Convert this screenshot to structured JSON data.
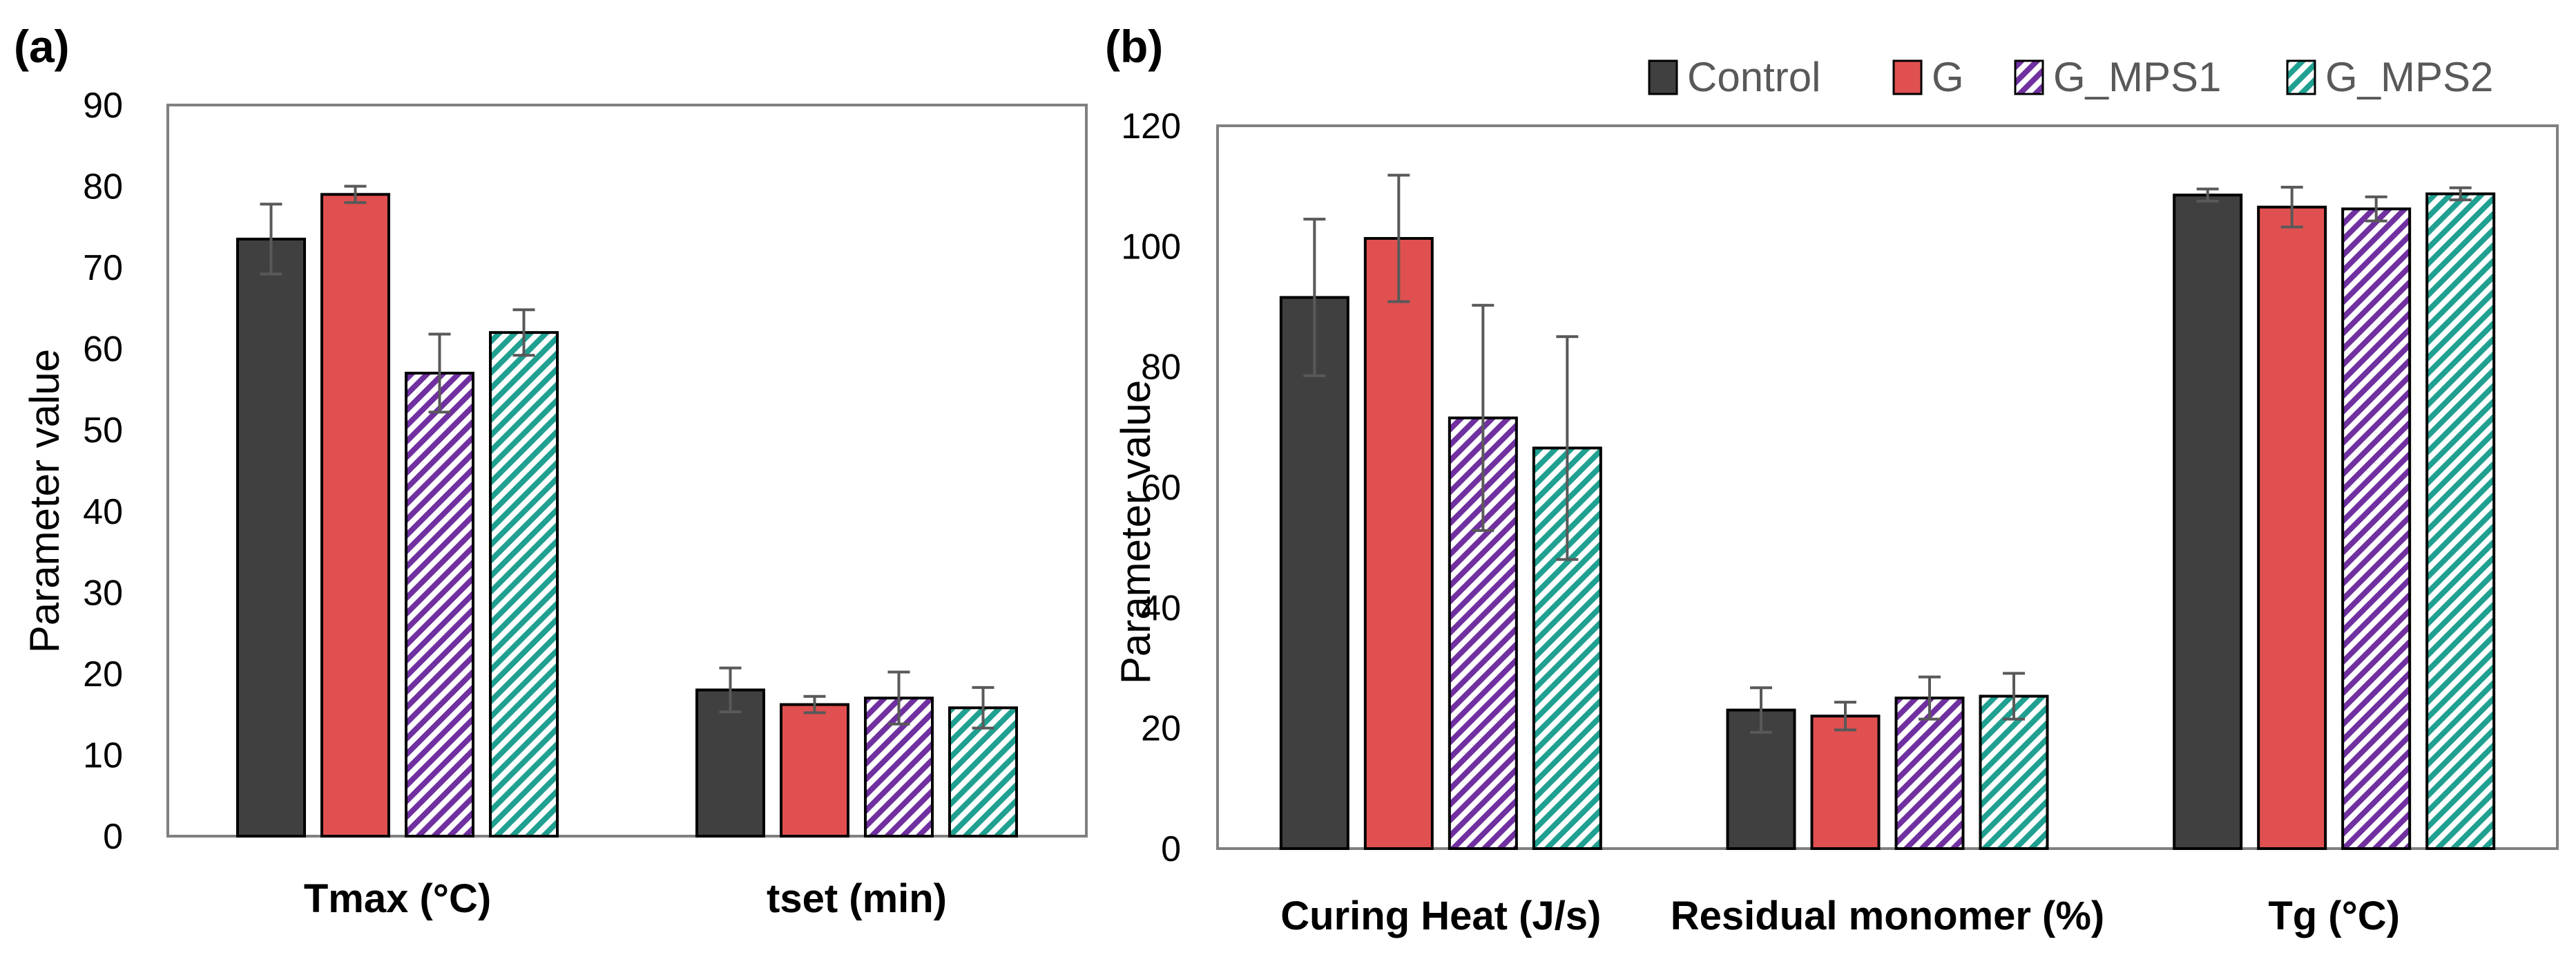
{
  "legend": [
    "Control",
    "G",
    "G_MPS1",
    "G_MPS2"
  ],
  "colors": {
    "Control": "#404040",
    "G": "#e05050",
    "G_MPS1": "#7030a0",
    "G_MPS2": "#20a090",
    "axis": "#808080",
    "errorbar": "#595959"
  },
  "chart_data": [
    {
      "panel_label": "(a)",
      "type": "bar",
      "ylabel": "Parameter value",
      "ylim": [
        0,
        90
      ],
      "yticks": [
        "0",
        "10",
        "20",
        "30",
        "40",
        "50",
        "60",
        "70",
        "80",
        "90"
      ],
      "categories": [
        "Tmax (°C)",
        "tset (min)"
      ],
      "series": [
        {
          "name": "Control",
          "values": [
            73.5,
            18
          ],
          "errors": [
            4.3,
            2.7
          ]
        },
        {
          "name": "G",
          "values": [
            79,
            16.2
          ],
          "errors": [
            1.0,
            1.0
          ]
        },
        {
          "name": "G_MPS1",
          "values": [
            57,
            17
          ],
          "errors": [
            4.8,
            3.2
          ]
        },
        {
          "name": "G_MPS2",
          "values": [
            62,
            15.8
          ],
          "errors": [
            2.8,
            2.5
          ]
        }
      ]
    },
    {
      "panel_label": "(b)",
      "type": "bar",
      "ylabel": "Parameter value",
      "ylim": [
        0,
        120
      ],
      "yticks": [
        "0",
        "20",
        "40",
        "60",
        "80",
        "100",
        "120"
      ],
      "categories": [
        "Curing Heat (J/s)",
        "Residual monomer (%)",
        "Tg (°C)"
      ],
      "series": [
        {
          "name": "Control",
          "values": [
            91.5,
            23,
            108.5
          ],
          "errors": [
            13,
            3.7,
            1.0
          ]
        },
        {
          "name": "G",
          "values": [
            101.3,
            22,
            106.5
          ],
          "errors": [
            10.5,
            2.3,
            3.3
          ]
        },
        {
          "name": "G_MPS1",
          "values": [
            71.5,
            25,
            106.2
          ],
          "errors": [
            18.7,
            3.5,
            2.0
          ]
        },
        {
          "name": "G_MPS2",
          "values": [
            66.5,
            25.3,
            108.7
          ],
          "errors": [
            18.5,
            3.8,
            1.0
          ]
        }
      ]
    }
  ]
}
